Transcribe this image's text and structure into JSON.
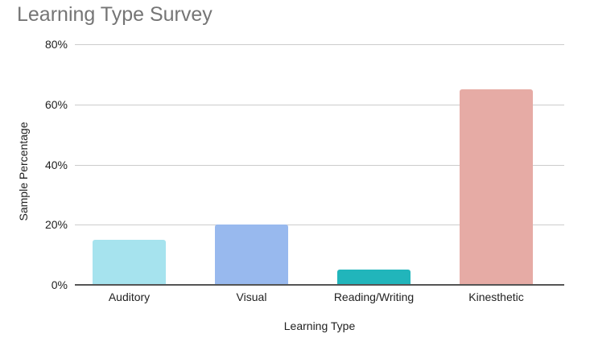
{
  "chart_data": {
    "type": "bar",
    "title": "Learning Type Survey",
    "xlabel": "Learning Type",
    "ylabel": "Sample Percentage",
    "categories": [
      "Auditory",
      "Visual",
      "Reading/Writing",
      "Kinesthetic"
    ],
    "values": [
      15,
      20,
      5,
      65
    ],
    "colors": [
      "#a6e3ee",
      "#98b9ee",
      "#21b5bb",
      "#e6aba5"
    ],
    "ylim": [
      0,
      80
    ],
    "yticks": [
      0,
      20,
      40,
      60,
      80
    ],
    "ytick_labels": [
      "0%",
      "20%",
      "40%",
      "60%",
      "80%"
    ],
    "grid": true,
    "legend": "none"
  }
}
